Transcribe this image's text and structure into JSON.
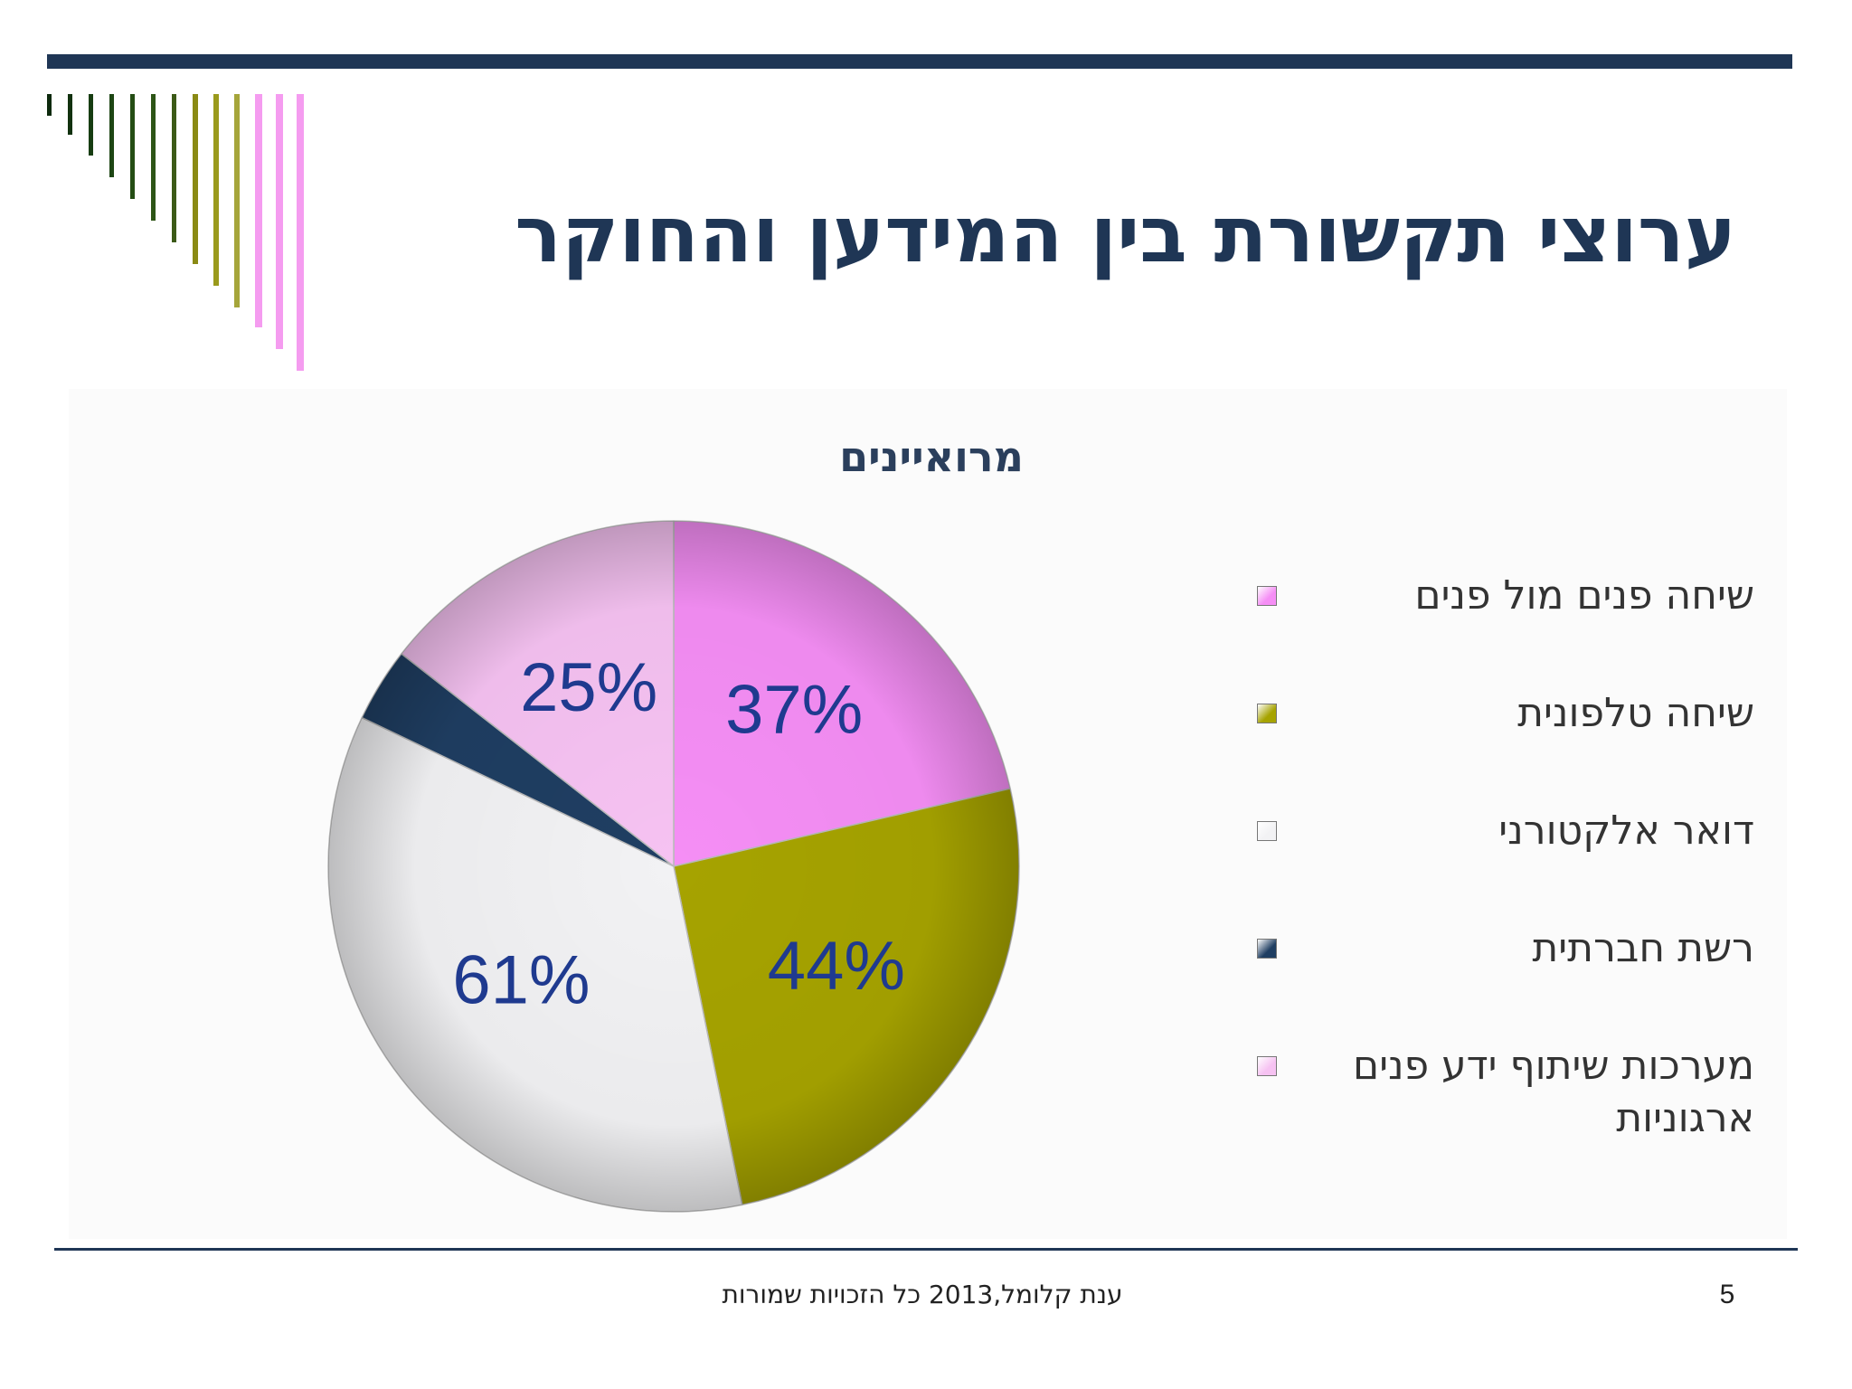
{
  "slide": {
    "title": "ערוצי תקשורת בין המידען והחוקר",
    "footer": "ענת קלומל,2013 כל הזכויות שמורות",
    "page_number": "5"
  },
  "chart_data": {
    "type": "pie",
    "title": "מרואיינים",
    "legend_position": "right",
    "categories": [
      "שיחה פנים מול פנים",
      "שיחה טלפונית",
      "דואר אלקטורני",
      "רשת חברתית",
      "מערכות שיתוף ידע פנים ארגוניות"
    ],
    "values": [
      37,
      44,
      61,
      6,
      25
    ],
    "data_labels": [
      "37%",
      "44%",
      "61%",
      "",
      "25%"
    ],
    "colors": [
      "#f58ef5",
      "#a6a300",
      "#f2f2f4",
      "#1f3e62",
      "#f6c2f2"
    ]
  },
  "colors": {
    "title": "#1f3655",
    "label": "#1f3a8f",
    "rule": "#1f3655"
  }
}
